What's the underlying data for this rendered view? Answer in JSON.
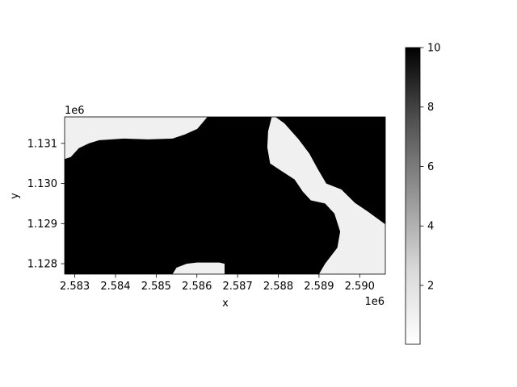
{
  "chart_data": {
    "type": "heatmap",
    "xlabel": "x",
    "ylabel": "y",
    "x_offset_label": "1e6",
    "y_offset_label": "1e6",
    "x_ticks": [
      2.583,
      2.584,
      2.585,
      2.586,
      2.587,
      2.588,
      2.589,
      2.59
    ],
    "x_tick_labels": [
      "2.583",
      "2.584",
      "2.585",
      "2.586",
      "2.587",
      "2.588",
      "2.589",
      "2.590"
    ],
    "y_ticks": [
      1.128,
      1.129,
      1.13,
      1.131
    ],
    "y_tick_labels": [
      "1.128",
      "1.129",
      "1.130",
      "1.131"
    ],
    "xlim": [
      2.58275,
      2.59063
    ],
    "ylim": [
      1.12774,
      1.13166
    ],
    "colormap": "Greys",
    "color_range": [
      0.02,
      10
    ],
    "colorbar_ticks": [
      2,
      4,
      6,
      8,
      10
    ],
    "colorbar_tick_labels": [
      "2",
      "4",
      "6",
      "8",
      "10"
    ],
    "background_value": 10,
    "regions": [
      {
        "name": "top-left-region",
        "value": 0.3,
        "points": [
          [
            2.58275,
            1.13166
          ],
          [
            2.58626,
            1.13166
          ],
          [
            2.58601,
            1.13136
          ],
          [
            2.5857,
            1.13122
          ],
          [
            2.5854,
            1.13112
          ],
          [
            2.5848,
            1.1311
          ],
          [
            2.5842,
            1.13112
          ],
          [
            2.5836,
            1.13108
          ],
          [
            2.58335,
            1.131
          ],
          [
            2.5831,
            1.13088
          ],
          [
            2.5829,
            1.13066
          ],
          [
            2.58275,
            1.13061
          ]
        ]
      },
      {
        "name": "right-river-region",
        "value": 0.3,
        "points": [
          [
            2.58784,
            1.13166
          ],
          [
            2.58793,
            1.13166
          ],
          [
            2.58815,
            1.1315
          ],
          [
            2.5885,
            1.1311
          ],
          [
            2.58876,
            1.13075
          ],
          [
            2.58897,
            1.13036
          ],
          [
            2.58918,
            1.13
          ],
          [
            2.58955,
            1.12985
          ],
          [
            2.58988,
            1.12952
          ],
          [
            2.5902,
            1.1293
          ],
          [
            2.59063,
            1.12898
          ],
          [
            2.59063,
            1.12774
          ],
          [
            2.589,
            1.12774
          ],
          [
            2.58915,
            1.128
          ],
          [
            2.58945,
            1.1284
          ],
          [
            2.58952,
            1.1288
          ],
          [
            2.58938,
            1.12925
          ],
          [
            2.58915,
            1.1295
          ],
          [
            2.5888,
            1.12958
          ],
          [
            2.5886,
            1.1298
          ],
          [
            2.5884,
            1.1301
          ],
          [
            2.5881,
            1.1303
          ],
          [
            2.5878,
            1.1305
          ],
          [
            2.58773,
            1.1309
          ],
          [
            2.58775,
            1.1313
          ]
        ]
      },
      {
        "name": "bottom-center-region",
        "value": 0.3,
        "points": [
          [
            2.5854,
            1.12774
          ],
          [
            2.58668,
            1.12774
          ],
          [
            2.58668,
            1.128
          ],
          [
            2.58655,
            1.12803
          ],
          [
            2.586,
            1.12803
          ],
          [
            2.58575,
            1.128
          ],
          [
            2.5855,
            1.1279
          ]
        ]
      }
    ]
  }
}
